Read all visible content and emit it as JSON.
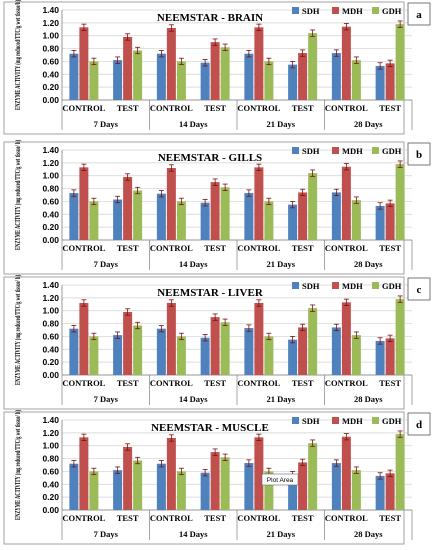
{
  "chart_data": [
    {
      "type": "bar",
      "title": "NEEMSTAR - BRAIN",
      "panel_label": "a",
      "ylabel": "ENZYME ACTIVITY (mg reduced/TTC/g wet tissue/h)",
      "ylim": [
        0,
        1.4
      ],
      "yticks": [
        "0.00",
        "0.20",
        "0.40",
        "0.60",
        "0.80",
        "1.00",
        "1.20",
        "1.40"
      ],
      "categories": [
        "CONTROL",
        "TEST",
        "CONTROL",
        "TEST",
        "CONTROL",
        "TEST",
        "CONTROL",
        "TEST"
      ],
      "groups": [
        "7 Days",
        "14 Days",
        "21 Days",
        "28 Days"
      ],
      "legend_position": "top-right",
      "series": [
        {
          "name": "SDH",
          "color": "#4f81bd",
          "values": [
            0.72,
            0.62,
            0.72,
            0.58,
            0.72,
            0.55,
            0.73,
            0.53
          ]
        },
        {
          "name": "MDH",
          "color": "#c0504d",
          "values": [
            1.13,
            0.98,
            1.12,
            0.9,
            1.13,
            0.73,
            1.14,
            0.57
          ]
        },
        {
          "name": "GDH",
          "color": "#9bbb59",
          "values": [
            0.6,
            0.77,
            0.6,
            0.82,
            0.6,
            1.04,
            0.62,
            1.18
          ]
        }
      ]
    },
    {
      "type": "bar",
      "title": "NEEMSTAR - GILLS",
      "panel_label": "b",
      "ylabel": "ENZYME ACTIVITY (mg reduced/TTC/g wet tissue/ h)",
      "ylim": [
        0,
        1.4
      ],
      "yticks": [
        "0.00",
        "0.20",
        "0.40",
        "0.60",
        "0.80",
        "1.00",
        "1.20",
        "1.40"
      ],
      "categories": [
        "CONTROL",
        "TEST",
        "CONTROL",
        "TEST",
        "CONTROL",
        "TEST",
        "CONTROL",
        "TEST"
      ],
      "groups": [
        "7 Days",
        "14 Days",
        "21 Days",
        "28 Days"
      ],
      "legend_position": "top-right",
      "series": [
        {
          "name": "SDH",
          "color": "#4f81bd",
          "values": [
            0.73,
            0.63,
            0.72,
            0.58,
            0.73,
            0.55,
            0.74,
            0.53
          ]
        },
        {
          "name": "MDH",
          "color": "#c0504d",
          "values": [
            1.13,
            0.98,
            1.12,
            0.9,
            1.13,
            0.74,
            1.14,
            0.57
          ]
        },
        {
          "name": "GDH",
          "color": "#9bbb59",
          "values": [
            0.6,
            0.77,
            0.6,
            0.82,
            0.6,
            1.04,
            0.62,
            1.18
          ]
        }
      ]
    },
    {
      "type": "bar",
      "title": "NEEMSTAR - LIVER",
      "panel_label": "c",
      "ylabel": "ENZYME ACTIVITY (mg reduced/TTC/g wet tissue/ h)",
      "ylim": [
        0,
        1.4
      ],
      "yticks": [
        "0.00",
        "0.20",
        "0.40",
        "0.60",
        "0.80",
        "1.00",
        "1.20",
        "1.40"
      ],
      "categories": [
        "CONTROL",
        "TEST",
        "CONTROL",
        "TEST",
        "CONTROL",
        "TEST",
        "CONTROL",
        "TEST"
      ],
      "groups": [
        "7 Days",
        "14 Days",
        "21 Days",
        "28 Days"
      ],
      "legend_position": "top-right",
      "series": [
        {
          "name": "SDH",
          "color": "#4f81bd",
          "values": [
            0.72,
            0.62,
            0.72,
            0.58,
            0.73,
            0.55,
            0.74,
            0.53
          ]
        },
        {
          "name": "MDH",
          "color": "#c0504d",
          "values": [
            1.12,
            0.98,
            1.12,
            0.9,
            1.12,
            0.74,
            1.13,
            0.57
          ]
        },
        {
          "name": "GDH",
          "color": "#9bbb59",
          "values": [
            0.6,
            0.77,
            0.6,
            0.82,
            0.6,
            1.04,
            0.62,
            1.18
          ]
        }
      ]
    },
    {
      "type": "bar",
      "title": "NEEMSTAR - MUSCLE",
      "panel_label": "d",
      "ylabel": "ENZYME ACTIVITY (mg reduced/TTC/g wet tissue/ h)",
      "ylim": [
        0,
        1.4
      ],
      "yticks": [
        "0.00",
        "0.20",
        "0.40",
        "0.60",
        "0.80",
        "1.00",
        "1.20",
        "1.40"
      ],
      "categories": [
        "CONTROL",
        "TEST",
        "CONTROL",
        "TEST",
        "CONTROL",
        "TEST",
        "CONTROL",
        "TEST"
      ],
      "groups": [
        "7 Days",
        "14 Days",
        "21 Days",
        "28 Days"
      ],
      "legend_position": "top-right",
      "tooltip": "Plot Area",
      "series": [
        {
          "name": "SDH",
          "color": "#4f81bd",
          "values": [
            0.72,
            0.62,
            0.72,
            0.58,
            0.73,
            0.55,
            0.73,
            0.53
          ]
        },
        {
          "name": "MDH",
          "color": "#c0504d",
          "values": [
            1.13,
            0.98,
            1.12,
            0.9,
            1.13,
            0.74,
            1.14,
            0.57
          ]
        },
        {
          "name": "GDH",
          "color": "#9bbb59",
          "values": [
            0.6,
            0.77,
            0.6,
            0.82,
            0.6,
            1.04,
            0.62,
            1.18
          ]
        }
      ]
    }
  ]
}
